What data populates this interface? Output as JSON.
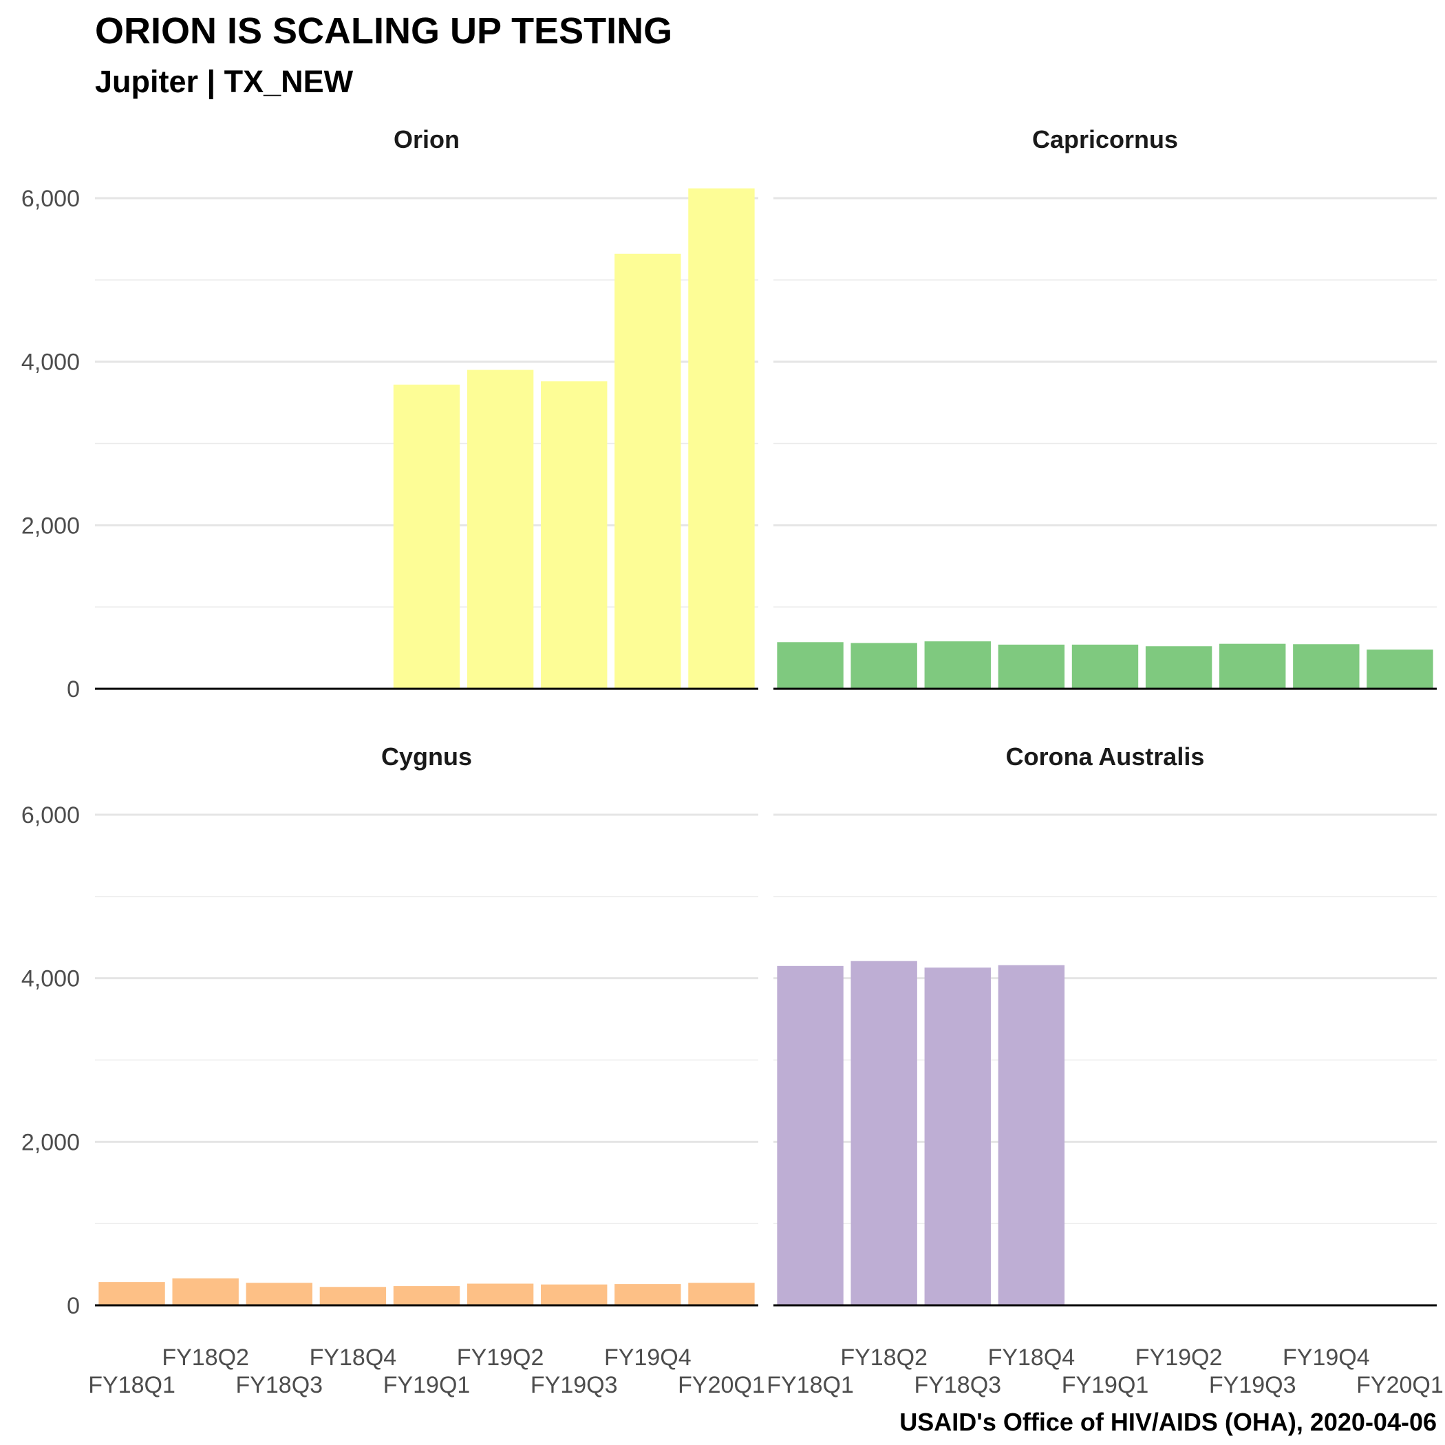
{
  "title": "ORION IS SCALING UP TESTING",
  "subtitle": "Jupiter | TX_NEW",
  "caption": "USAID's Office of HIV/AIDS (OHA), 2020-04-06",
  "chart_data": {
    "type": "bar",
    "categories": [
      "FY18Q1",
      "FY18Q2",
      "FY18Q3",
      "FY18Q4",
      "FY19Q1",
      "FY19Q2",
      "FY19Q3",
      "FY19Q4",
      "FY20Q1"
    ],
    "ylim": [
      0,
      6500
    ],
    "yticks": [
      0,
      2000,
      4000,
      6000
    ],
    "ytick_labels": [
      "0",
      "2,000",
      "4,000",
      "6,000"
    ],
    "grid": true,
    "panels": [
      {
        "name": "Orion",
        "color": "#FDFD96",
        "values": [
          null,
          null,
          null,
          null,
          3720,
          3900,
          3760,
          5320,
          6120
        ]
      },
      {
        "name": "Capricornus",
        "color": "#7FC97F",
        "values": [
          570,
          560,
          580,
          540,
          540,
          520,
          550,
          545,
          480
        ]
      },
      {
        "name": "Cygnus",
        "color": "#FDC086",
        "values": [
          285,
          330,
          275,
          225,
          235,
          265,
          255,
          260,
          275
        ]
      },
      {
        "name": "Corona Australis",
        "color": "#BEAED4",
        "values": [
          4150,
          4210,
          4130,
          4160,
          null,
          null,
          null,
          null,
          null
        ]
      }
    ]
  }
}
